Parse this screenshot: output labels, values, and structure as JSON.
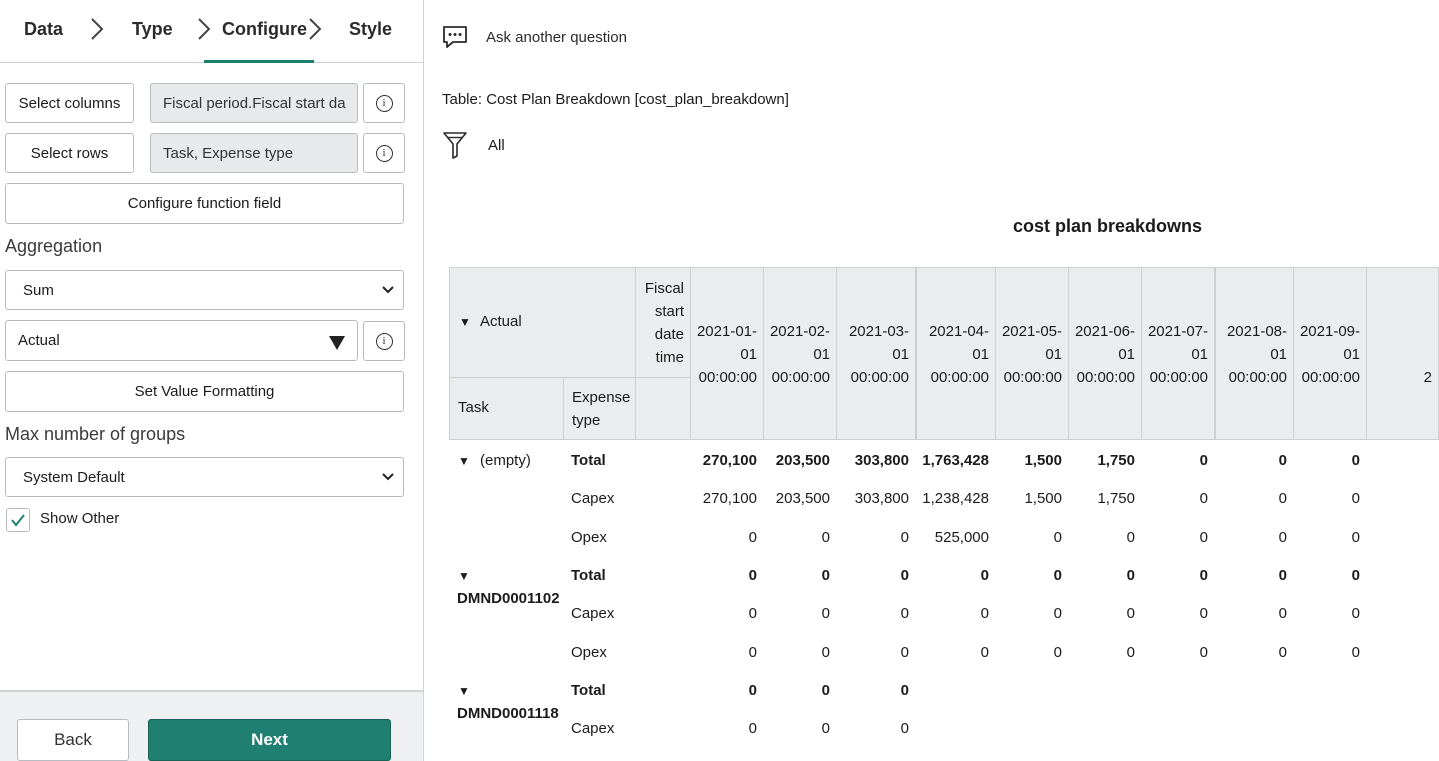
{
  "steps": [
    "Data",
    "Type",
    "Configure",
    "Style"
  ],
  "config": {
    "select_columns_label": "Select columns",
    "select_columns_value": "Fiscal period.Fiscal start da",
    "select_rows_label": "Select rows",
    "select_rows_value": "Task, Expense type",
    "function_field_label": "Configure function field",
    "aggregation_label": "Aggregation",
    "aggregation_value": "Sum",
    "aggregation_field_value": "Actual",
    "value_formatting_label": "Set Value Formatting",
    "max_groups_label": "Max number of groups",
    "max_groups_value": "System Default",
    "show_other_label": "Show Other",
    "show_other_checked": true,
    "info_glyph": "i"
  },
  "footer": {
    "back_label": "Back",
    "next_label": "Next"
  },
  "report": {
    "ask_label": "Ask another question",
    "table_label": "Table: Cost Plan Breakdown [cost_plan_breakdown]",
    "filter_label": "All",
    "title": "cost plan breakdowns"
  },
  "pivot": {
    "measure_header": "Actual",
    "column_header": "Fiscal start date time",
    "task_header": "Task",
    "expense_header": "Expense type",
    "columns": [
      "2021-01-01 00:00:00",
      "2021-02-01 00:00:00",
      "2021-03-01 00:00:00",
      "2021-04-01 00:00:00",
      "2021-05-01 00:00:00",
      "2021-06-01 00:00:00",
      "2021-07-01 00:00:00",
      "2021-08-01 00:00:00",
      "2021-09-01 00:00:00",
      "2"
    ],
    "groups": [
      {
        "task": "(empty)",
        "rows": [
          {
            "type": "Total",
            "values": [
              "270,100",
              "203,500",
              "303,800",
              "1,763,428",
              "1,500",
              "1,750",
              "0",
              "0",
              "0"
            ]
          },
          {
            "type": "Capex",
            "values": [
              "270,100",
              "203,500",
              "303,800",
              "1,238,428",
              "1,500",
              "1,750",
              "0",
              "0",
              "0"
            ]
          },
          {
            "type": "Opex",
            "values": [
              "0",
              "0",
              "0",
              "525,000",
              "0",
              "0",
              "0",
              "0",
              "0"
            ]
          }
        ]
      },
      {
        "task": "DMND0001102",
        "rows": [
          {
            "type": "Total",
            "values": [
              "0",
              "0",
              "0",
              "0",
              "0",
              "0",
              "0",
              "0",
              "0"
            ]
          },
          {
            "type": "Capex",
            "values": [
              "0",
              "0",
              "0",
              "0",
              "0",
              "0",
              "0",
              "0",
              "0"
            ]
          },
          {
            "type": "Opex",
            "values": [
              "0",
              "0",
              "0",
              "0",
              "0",
              "0",
              "0",
              "0",
              "0"
            ]
          }
        ]
      },
      {
        "task": "DMND0001118",
        "rows": [
          {
            "type": "Total",
            "values": [
              "0",
              "0",
              "0"
            ]
          },
          {
            "type": "Capex",
            "values": [
              "0",
              "0",
              "0"
            ]
          }
        ]
      }
    ]
  }
}
